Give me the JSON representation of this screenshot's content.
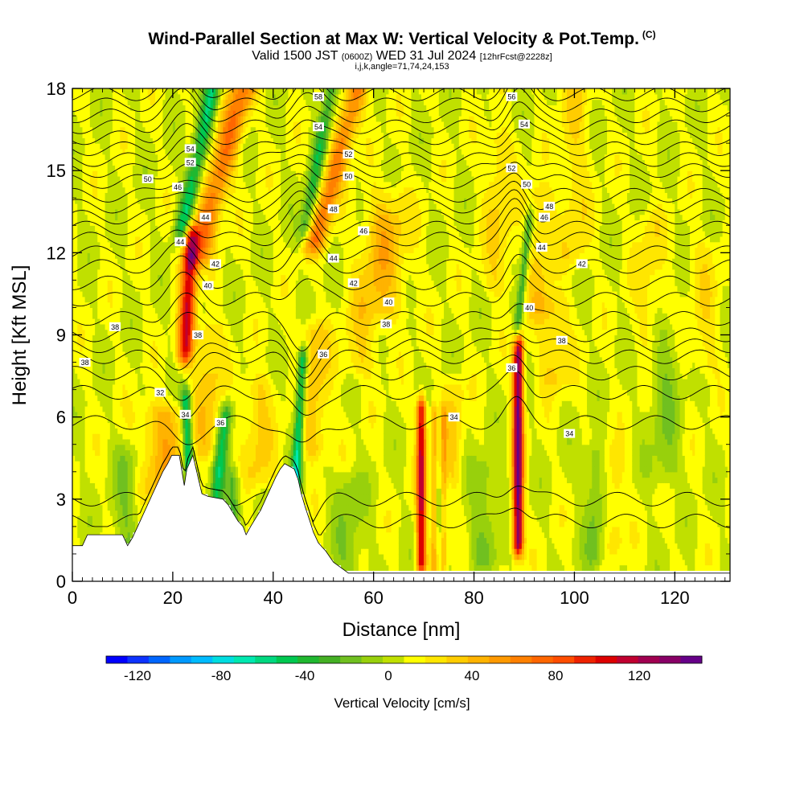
{
  "header": {
    "title": "Wind-Parallel Section at Max W: Vertical Velocity & Pot.Temp.",
    "title_mark": "(C)",
    "valid_prefix": "Valid 1500 JST",
    "valid_utc": "(0600Z)",
    "valid_date": "WED 31 Jul 2024",
    "forecast": "[12hrFcst@2228z]",
    "indices": "i,j,k,angle=71,74,24,153"
  },
  "chart_data": {
    "type": "heatmap",
    "xlabel": "Distance [nm]",
    "ylabel": "Height [Kft MSL]",
    "xlim": [
      0,
      131
    ],
    "ylim": [
      0,
      18
    ],
    "x_ticks": [
      "0",
      "20",
      "40",
      "60",
      "80",
      "100",
      "120"
    ],
    "x_tick_values": [
      0,
      20,
      40,
      60,
      80,
      100,
      120
    ],
    "y_ticks": [
      "0",
      "3",
      "6",
      "9",
      "12",
      "15",
      "18"
    ],
    "y_tick_values": [
      0,
      3,
      6,
      9,
      12,
      15,
      18
    ],
    "colorbar": {
      "title": "Vertical Velocity [cm/s]",
      "tick_labels": [
        "-120",
        "-80",
        "-40",
        "0",
        "40",
        "80",
        "120"
      ],
      "tick_values": [
        -120,
        -80,
        -40,
        0,
        40,
        80,
        120
      ],
      "range": [
        -135,
        150
      ],
      "colors": [
        "#0000ff",
        "#0d33ff",
        "#0066ff",
        "#0099ff",
        "#00bbff",
        "#00dde0",
        "#00e8b0",
        "#00d880",
        "#00c850",
        "#20b830",
        "#44b024",
        "#70c020",
        "#98d00c",
        "#c0e000",
        "#ffff00",
        "#ffe600",
        "#ffcc00",
        "#ffb300",
        "#ff9900",
        "#ff8000",
        "#ff6600",
        "#ff4d00",
        "#ee2200",
        "#dd0000",
        "#c00030",
        "#a00050",
        "#880066",
        "#660088"
      ]
    },
    "background_w": 8,
    "updraft_bands": [
      {
        "x": 18,
        "w": 35,
        "width": 4.5,
        "z0": 3.5,
        "z1": 6.0,
        "slant": 0
      },
      {
        "x": 22.5,
        "w": 95,
        "width": 1.5,
        "z0": 8.5,
        "z1": 12.5,
        "slant": 0.3
      },
      {
        "x": 25,
        "w": 60,
        "width": 2.5,
        "z0": 12,
        "z1": 18,
        "slant": 1.5
      },
      {
        "x": 27,
        "w": 25,
        "width": 3,
        "z0": 5,
        "z1": 9,
        "slant": 0
      },
      {
        "x": 37,
        "w": 22,
        "width": 3,
        "z0": 4,
        "z1": 7,
        "slant": 0
      },
      {
        "x": 48,
        "w": 28,
        "width": 3,
        "z0": 5,
        "z1": 9,
        "slant": 0
      },
      {
        "x": 48.5,
        "w": 55,
        "width": 2.2,
        "z0": 12.5,
        "z1": 18,
        "slant": 1.5
      },
      {
        "x": 57,
        "w": 20,
        "width": 4,
        "z0": 8,
        "z1": 14,
        "slant": 1
      },
      {
        "x": 63,
        "w": 15,
        "width": 5,
        "z0": 10,
        "z1": 13,
        "slant": 0
      },
      {
        "x": 69.5,
        "w": 105,
        "width": 0.9,
        "z0": 0.8,
        "z1": 6.2,
        "slant": 0
      },
      {
        "x": 72,
        "w": 35,
        "width": 0.6,
        "z0": 0.8,
        "z1": 6,
        "slant": 0
      },
      {
        "x": 74,
        "w": 30,
        "width": 0.6,
        "z0": 0.8,
        "z1": 6,
        "slant": 0
      },
      {
        "x": 76,
        "w": 20,
        "width": 2,
        "z0": 4,
        "z1": 7,
        "slant": 0
      },
      {
        "x": 85,
        "w": 20,
        "width": 3,
        "z0": 11,
        "z1": 16,
        "slant": 0
      },
      {
        "x": 88.8,
        "w": 135,
        "width": 1.0,
        "z0": 1.5,
        "z1": 8.5,
        "slant": 0
      },
      {
        "x": 93,
        "w": 22,
        "width": 2.5,
        "z0": 10,
        "z1": 14,
        "slant": 0
      },
      {
        "x": 96,
        "w": 22,
        "width": 3,
        "z0": 7.5,
        "z1": 10,
        "slant": 0
      },
      {
        "x": 100,
        "w": 18,
        "width": 3,
        "z0": 12,
        "z1": 18,
        "slant": 0
      },
      {
        "x": 108,
        "w": 18,
        "width": 2,
        "z0": 1.5,
        "z1": 4.5,
        "slant": 0
      },
      {
        "x": 115,
        "w": 15,
        "width": 3,
        "z0": 9,
        "z1": 13,
        "slant": 0
      },
      {
        "x": 126,
        "w": 14,
        "width": 3,
        "z0": 8,
        "z1": 12,
        "slant": 0
      }
    ],
    "downdraft_bands": [
      {
        "x": 22,
        "w": -60,
        "width": 1.6,
        "z0": 13,
        "z1": 18,
        "slant": 1.2
      },
      {
        "x": 23.5,
        "w": -70,
        "width": 1.0,
        "z0": 2.5,
        "z1": 6.5,
        "slant": -0.2
      },
      {
        "x": 28.5,
        "w": -55,
        "width": 1.3,
        "z0": 2.8,
        "z1": 6.0,
        "slant": 0.6
      },
      {
        "x": 32,
        "w": -35,
        "width": 1.5,
        "z0": 1.8,
        "z1": 3.6,
        "slant": 0
      },
      {
        "x": 44.5,
        "w": -75,
        "width": 1.0,
        "z0": 3.5,
        "z1": 8.0,
        "slant": 0.3
      },
      {
        "x": 46.5,
        "w": -45,
        "width": 1.4,
        "z0": 13,
        "z1": 18,
        "slant": 1.0
      },
      {
        "x": 88.5,
        "w": -45,
        "width": 0.8,
        "z0": 9,
        "z1": 13,
        "slant": 0.6
      },
      {
        "x": 11,
        "w": -20,
        "width": 2.5,
        "z0": 0.8,
        "z1": 4.5,
        "slant": 0
      },
      {
        "x": 55,
        "w": -18,
        "width": 3,
        "z0": 0.5,
        "z1": 3.5,
        "slant": 0
      },
      {
        "x": 82,
        "w": -20,
        "width": 3,
        "z0": 1,
        "z1": 4,
        "slant": 0
      },
      {
        "x": 104,
        "w": -22,
        "width": 2,
        "z0": 1,
        "z1": 4.5,
        "slant": 0
      },
      {
        "x": 118,
        "w": -18,
        "width": 3,
        "z0": 4,
        "z1": 9,
        "slant": 0
      }
    ],
    "terrain": {
      "x": [
        0,
        2,
        3,
        10,
        11,
        12,
        13,
        14,
        15,
        16,
        17,
        18,
        19,
        19.8,
        21.3,
        22.3,
        22.8,
        24,
        25.8,
        27,
        30,
        31,
        32,
        33,
        34,
        34.6,
        35.5,
        36.5,
        37.5,
        38.5,
        39.5,
        40.5,
        41.4,
        42.3,
        44.2,
        45,
        45.6,
        46.4,
        47.3,
        48,
        49,
        50.5,
        52,
        55,
        131
      ],
      "z": [
        1.3,
        1.3,
        1.7,
        1.7,
        1.3,
        1.6,
        2.0,
        2.4,
        2.8,
        3.2,
        3.6,
        4.0,
        4.3,
        4.6,
        4.6,
        3.5,
        4.1,
        4.6,
        3.2,
        3.1,
        3.0,
        2.8,
        2.5,
        2.2,
        2.0,
        1.7,
        2.0,
        2.3,
        2.6,
        3.0,
        3.4,
        3.8,
        4.1,
        4.3,
        4.1,
        3.7,
        3.2,
        2.7,
        2.2,
        1.8,
        1.4,
        1.1,
        0.7,
        0.3,
        0.3
      ]
    },
    "theta_contours": {
      "levels": [
        32,
        33,
        34,
        35,
        36,
        37,
        38,
        39,
        40,
        41,
        42,
        43,
        44,
        45,
        46,
        47,
        48,
        49,
        50,
        51,
        52,
        53,
        54,
        55,
        56,
        57,
        58
      ],
      "base_heights": [
        2.2,
        3.0,
        5.8,
        6.9,
        7.6,
        8.2,
        8.6,
        9.0,
        9.6,
        10.3,
        10.9,
        11.5,
        12.0,
        12.5,
        12.9,
        13.3,
        13.7,
        14.1,
        14.6,
        15.0,
        15.4,
        15.8,
        16.2,
        16.6,
        17.0,
        17.4,
        17.8
      ],
      "labels": [
        {
          "text": "32",
          "x": 17.5,
          "z": 6.9
        },
        {
          "text": "34",
          "x": 22.5,
          "z": 6.1
        },
        {
          "text": "36",
          "x": 29.5,
          "z": 5.8
        },
        {
          "text": "38",
          "x": 25,
          "z": 9.0
        },
        {
          "text": "38",
          "x": 2.5,
          "z": 8.0
        },
        {
          "text": "38",
          "x": 8.5,
          "z": 9.3
        },
        {
          "text": "40",
          "x": 27,
          "z": 10.8
        },
        {
          "text": "42",
          "x": 28.5,
          "z": 11.6
        },
        {
          "text": "44",
          "x": 21.5,
          "z": 12.4
        },
        {
          "text": "44",
          "x": 26.5,
          "z": 13.3
        },
        {
          "text": "46",
          "x": 21,
          "z": 14.4
        },
        {
          "text": "50",
          "x": 15,
          "z": 14.7
        },
        {
          "text": "52",
          "x": 23.5,
          "z": 15.3
        },
        {
          "text": "54",
          "x": 23.5,
          "z": 15.8
        },
        {
          "text": "58",
          "x": 49,
          "z": 17.7
        },
        {
          "text": "54",
          "x": 49,
          "z": 16.6
        },
        {
          "text": "52",
          "x": 55,
          "z": 15.6
        },
        {
          "text": "50",
          "x": 55,
          "z": 14.8
        },
        {
          "text": "48",
          "x": 52,
          "z": 13.6
        },
        {
          "text": "46",
          "x": 58,
          "z": 12.8
        },
        {
          "text": "44",
          "x": 52,
          "z": 11.8
        },
        {
          "text": "42",
          "x": 56,
          "z": 10.9
        },
        {
          "text": "40",
          "x": 63,
          "z": 10.2
        },
        {
          "text": "38",
          "x": 62.5,
          "z": 9.4
        },
        {
          "text": "36",
          "x": 50,
          "z": 8.3
        },
        {
          "text": "34",
          "x": 76,
          "z": 6.0
        },
        {
          "text": "36",
          "x": 87.5,
          "z": 7.8
        },
        {
          "text": "56",
          "x": 87.5,
          "z": 17.7
        },
        {
          "text": "54",
          "x": 90,
          "z": 16.7
        },
        {
          "text": "52",
          "x": 87.5,
          "z": 15.1
        },
        {
          "text": "50",
          "x": 90.5,
          "z": 14.5
        },
        {
          "text": "48",
          "x": 95,
          "z": 13.7
        },
        {
          "text": "46",
          "x": 94,
          "z": 13.3
        },
        {
          "text": "44",
          "x": 93.5,
          "z": 12.2
        },
        {
          "text": "42",
          "x": 101.5,
          "z": 11.6
        },
        {
          "text": "40",
          "x": 91,
          "z": 10.0
        },
        {
          "text": "38",
          "x": 97.5,
          "z": 8.8
        },
        {
          "text": "34",
          "x": 99,
          "z": 5.4
        }
      ]
    }
  }
}
